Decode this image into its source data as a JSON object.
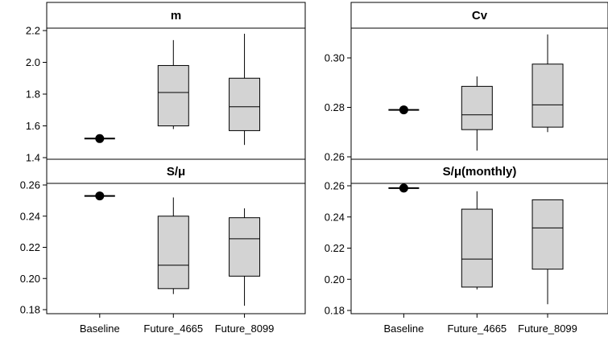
{
  "chart_data": {
    "type": "boxplot",
    "categories": [
      "Baseline",
      "Future_4665",
      "Future_8099"
    ],
    "colors": {
      "box_fill": "#d3d3d3",
      "stroke": "#000000",
      "point": "#000000"
    },
    "panels": [
      {
        "title": "m",
        "ylim": [
          1.4,
          2.2
        ],
        "yticks": [
          "1.4",
          "1.6",
          "1.8",
          "2.0",
          "2.2"
        ],
        "baseline": 1.52,
        "boxes": [
          {
            "category": "Future_4665",
            "min": 1.58,
            "q1": 1.6,
            "median": 1.81,
            "q3": 1.98,
            "max": 2.14
          },
          {
            "category": "Future_8099",
            "min": 1.48,
            "q1": 1.57,
            "median": 1.72,
            "q3": 1.9,
            "max": 2.18
          }
        ]
      },
      {
        "title": "Cv",
        "ylim": [
          0.26,
          0.3
        ],
        "yticks": [
          "0.26",
          "0.28",
          "0.30"
        ],
        "baseline": 0.279,
        "boxes": [
          {
            "category": "Future_4665",
            "min": 0.2625,
            "q1": 0.271,
            "median": 0.277,
            "q3": 0.2885,
            "max": 0.2925
          },
          {
            "category": "Future_8099",
            "min": 0.27,
            "q1": 0.272,
            "median": 0.281,
            "q3": 0.2975,
            "max": 0.3095
          }
        ]
      },
      {
        "title": "S/μ",
        "ylim": [
          0.18,
          0.26
        ],
        "yticks": [
          "0.18",
          "0.20",
          "0.22",
          "0.24",
          "0.26"
        ],
        "baseline": 0.253,
        "boxes": [
          {
            "category": "Future_4665",
            "min": 0.19,
            "q1": 0.1935,
            "median": 0.2085,
            "q3": 0.24,
            "max": 0.252
          },
          {
            "category": "Future_8099",
            "min": 0.1825,
            "q1": 0.2015,
            "median": 0.2255,
            "q3": 0.239,
            "max": 0.245
          }
        ]
      },
      {
        "title": "S/μ(monthly)",
        "ylim": [
          0.18,
          0.26
        ],
        "yticks": [
          "0.18",
          "0.20",
          "0.22",
          "0.24",
          "0.26"
        ],
        "baseline": 0.2585,
        "boxes": [
          {
            "category": "Future_4665",
            "min": 0.1935,
            "q1": 0.195,
            "median": 0.213,
            "q3": 0.245,
            "max": 0.2565
          },
          {
            "category": "Future_8099",
            "min": 0.184,
            "q1": 0.2065,
            "median": 0.233,
            "q3": 0.251,
            "max": 0.251
          }
        ]
      }
    ]
  }
}
